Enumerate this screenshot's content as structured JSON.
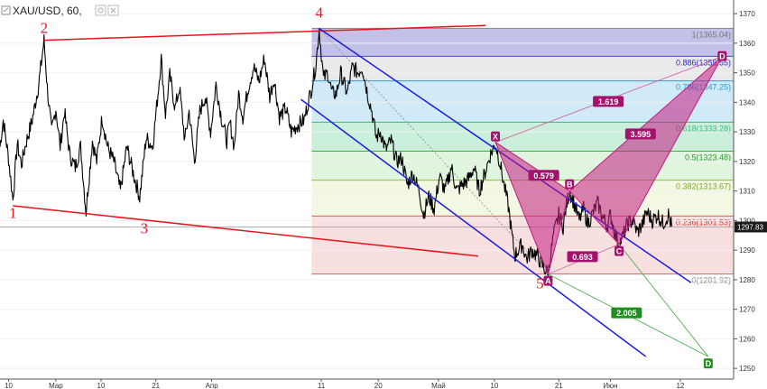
{
  "chart_data": {
    "type": "line",
    "title": "XAU/USD, 60,",
    "xlabel": "",
    "ylabel": "",
    "ylim": [
      1247,
      1374
    ],
    "y_ticks": [
      1250,
      1260,
      1270,
      1280,
      1290,
      1300,
      1310,
      1320,
      1330,
      1340,
      1350,
      1360,
      1370
    ],
    "x_ticks": [
      {
        "label": "10",
        "bar": 8
      },
      {
        "label": "Мар",
        "bar": 52
      },
      {
        "label": "10",
        "bar": 94
      },
      {
        "label": "21",
        "bar": 145
      },
      {
        "label": "Апр",
        "bar": 197
      },
      {
        "label": "11",
        "bar": 299
      },
      {
        "label": "20",
        "bar": 352
      },
      {
        "label": "Май",
        "bar": 408
      },
      {
        "label": "10",
        "bar": 460
      },
      {
        "label": "21",
        "bar": 520
      },
      {
        "label": "Июн",
        "bar": 568
      },
      {
        "label": "12",
        "bar": 633
      }
    ],
    "last_price": "1297.83",
    "series": [
      {
        "points": [
          [
            0,
            1325
          ],
          [
            3,
            1334
          ],
          [
            8,
            1321
          ],
          [
            12,
            1307
          ],
          [
            16,
            1326
          ],
          [
            20,
            1319
          ],
          [
            24,
            1326
          ],
          [
            30,
            1334
          ],
          [
            36,
            1346
          ],
          [
            41,
            1361
          ],
          [
            44,
            1345
          ],
          [
            48,
            1330
          ],
          [
            52,
            1338
          ],
          [
            56,
            1325
          ],
          [
            60,
            1337
          ],
          [
            65,
            1322
          ],
          [
            70,
            1318
          ],
          [
            75,
            1325
          ],
          [
            80,
            1303
          ],
          [
            86,
            1327
          ],
          [
            90,
            1320
          ],
          [
            95,
            1335
          ],
          [
            100,
            1325
          ],
          [
            106,
            1320
          ],
          [
            112,
            1310
          ],
          [
            118,
            1325
          ],
          [
            124,
            1316
          ],
          [
            130,
            1308
          ],
          [
            136,
            1328
          ],
          [
            142,
            1325
          ],
          [
            147,
            1343
          ],
          [
            150,
            1355
          ],
          [
            154,
            1336
          ],
          [
            158,
            1349
          ],
          [
            163,
            1338
          ],
          [
            167,
            1345
          ],
          [
            172,
            1327
          ],
          [
            176,
            1337
          ],
          [
            181,
            1320
          ],
          [
            186,
            1337
          ],
          [
            191,
            1342
          ],
          [
            196,
            1330
          ],
          [
            201,
            1346
          ],
          [
            206,
            1335
          ],
          [
            211,
            1327
          ],
          [
            214,
            1333
          ],
          [
            218,
            1325
          ],
          [
            222,
            1343
          ],
          [
            226,
            1335
          ],
          [
            231,
            1345
          ],
          [
            236,
            1352
          ],
          [
            241,
            1347
          ],
          [
            246,
            1355
          ],
          [
            251,
            1342
          ],
          [
            255,
            1348
          ],
          [
            260,
            1335
          ],
          [
            266,
            1338
          ],
          [
            271,
            1330
          ],
          [
            276,
            1332
          ],
          [
            283,
            1334
          ],
          [
            290,
            1345
          ],
          [
            294,
            1353
          ],
          [
            297,
            1365
          ],
          [
            301,
            1348
          ],
          [
            305,
            1350
          ],
          [
            309,
            1343
          ],
          [
            313,
            1343
          ],
          [
            317,
            1350
          ],
          [
            323,
            1343
          ],
          [
            328,
            1352
          ],
          [
            333,
            1350
          ],
          [
            337,
            1352
          ],
          [
            342,
            1343
          ],
          [
            346,
            1337
          ],
          [
            350,
            1328
          ],
          [
            354,
            1330
          ],
          [
            359,
            1324
          ],
          [
            364,
            1327
          ],
          [
            369,
            1320
          ],
          [
            374,
            1321
          ],
          [
            379,
            1312
          ],
          [
            384,
            1316
          ],
          [
            390,
            1310
          ],
          [
            394,
            1302
          ],
          [
            399,
            1308
          ],
          [
            404,
            1304
          ],
          [
            409,
            1315
          ],
          [
            414,
            1310
          ],
          [
            420,
            1318
          ],
          [
            425,
            1310
          ],
          [
            430,
            1312
          ],
          [
            436,
            1314
          ],
          [
            441,
            1318
          ],
          [
            446,
            1310
          ],
          [
            452,
            1317
          ],
          [
            456,
            1322
          ],
          [
            461,
            1326
          ],
          [
            465,
            1320
          ],
          [
            469,
            1312
          ],
          [
            473,
            1305
          ],
          [
            476,
            1296
          ],
          [
            479,
            1288
          ],
          [
            482,
            1290
          ],
          [
            486,
            1292
          ],
          [
            490,
            1287
          ],
          [
            495,
            1290
          ],
          [
            500,
            1288
          ],
          [
            506,
            1284
          ],
          [
            510,
            1282
          ],
          [
            515,
            1295
          ],
          [
            520,
            1302
          ],
          [
            524,
            1298
          ],
          [
            527,
            1305
          ],
          [
            530,
            1310
          ],
          [
            535,
            1305
          ],
          [
            539,
            1300
          ],
          [
            543,
            1304
          ],
          [
            547,
            1299
          ],
          [
            551,
            1302
          ],
          [
            556,
            1306
          ],
          [
            560,
            1302
          ],
          [
            565,
            1298
          ],
          [
            568,
            1302
          ],
          [
            572,
            1296
          ],
          [
            576,
            1292
          ],
          [
            580,
            1295
          ],
          [
            584,
            1299
          ],
          [
            589,
            1300
          ],
          [
            593,
            1296
          ],
          [
            598,
            1299
          ],
          [
            602,
            1303
          ],
          [
            607,
            1300
          ],
          [
            612,
            1302
          ],
          [
            617,
            1299
          ],
          [
            622,
            1302
          ],
          [
            625,
            1298
          ]
        ]
      }
    ],
    "fibonacci_levels": [
      {
        "ratio": "1",
        "label": "1(1365.04)",
        "price": 1365.04
      },
      {
        "ratio": "0.886",
        "label": "0.886(1355.55)",
        "price": 1355.55
      },
      {
        "ratio": "0.786",
        "label": "0.786(1347.25)",
        "price": 1347.25
      },
      {
        "ratio": "0.618",
        "label": "0.618(1333.28)",
        "price": 1333.28
      },
      {
        "ratio": "0.5",
        "label": "0.5(1323.48)",
        "price": 1323.48
      },
      {
        "ratio": "0.382",
        "label": "0.382(1313.67)",
        "price": 1313.67
      },
      {
        "ratio": "0.236",
        "label": "0.236(1301.53)",
        "price": 1301.53
      },
      {
        "ratio": "0",
        "label": "0(1281.92)",
        "price": 1281.92
      }
    ],
    "wave_labels": [
      {
        "text": "1",
        "bar": 12,
        "price": 1307
      },
      {
        "text": "2",
        "bar": 41,
        "price": 1361
      },
      {
        "text": "3",
        "bar": 130,
        "price": 1303
      },
      {
        "text": "4",
        "bar": 297,
        "price": 1365
      },
      {
        "text": "5",
        "bar": 510,
        "price": 1282
      }
    ],
    "pattern_points": [
      {
        "text": "X",
        "bar": 461,
        "price": 1326.5
      },
      {
        "text": "A",
        "bar": 510,
        "price": 1281.9
      },
      {
        "text": "B",
        "bar": 530,
        "price": 1310
      },
      {
        "text": "C",
        "bar": 576,
        "price": 1292
      },
      {
        "text": "D",
        "bar": 672,
        "price": 1355.5
      },
      {
        "text": "D",
        "bar": 659,
        "price": 1254
      }
    ],
    "pattern_ratios": [
      "1.619",
      "3.595",
      "0.579",
      "0.693",
      "2.005"
    ]
  }
}
